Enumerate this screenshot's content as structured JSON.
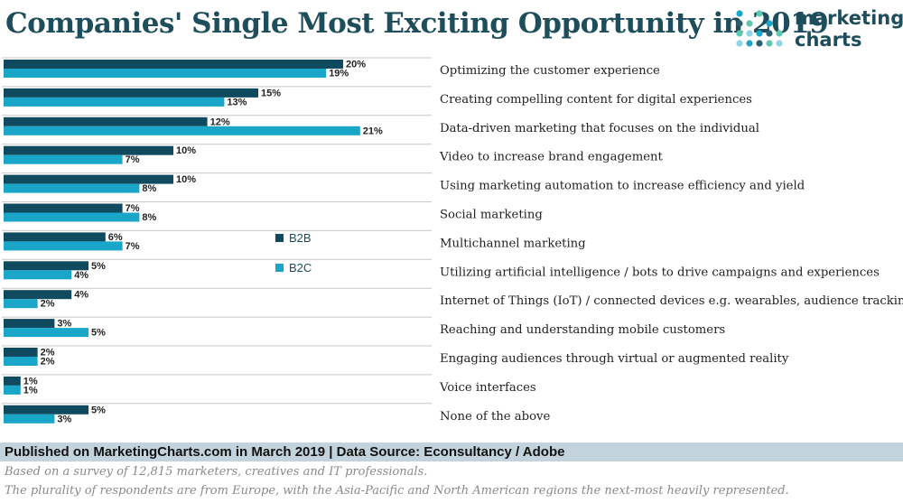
{
  "colors": {
    "b2b": "#0f4a5e",
    "b2c": "#1aa6c9",
    "title": "#1e4d5c",
    "footer_bg": "#c3d3dd",
    "logo_dots": [
      "#1aa6c9",
      "#2b5f6e",
      "#5cc8b0",
      "#8fd4e6"
    ]
  },
  "header": {
    "title": "Companies' Single Most Exciting Opportunity in 2019",
    "logo_line1": "marketing",
    "logo_line2": "charts"
  },
  "chart_data": {
    "type": "bar",
    "orientation": "horizontal",
    "title": "Companies' Single Most Exciting Opportunity in 2019",
    "value_suffix": "%",
    "xlim": [
      0,
      21
    ],
    "grid": false,
    "legend_position": "center-right",
    "categories": [
      "Optimizing the customer experience",
      "Creating compelling content for digital experiences",
      "Data-driven marketing that focuses on the individual",
      "Video to increase brand engagement",
      "Using marketing automation to increase efficiency and yield",
      "Social marketing",
      "Multichannel marketing",
      "Utilizing artificial intelligence / bots to drive campaigns and experiences",
      "Internet of Things (IoT) / connected devices e.g. wearables, audience tracking",
      "Reaching and understanding mobile customers",
      "Engaging audiences through virtual or augmented reality",
      "Voice interfaces",
      "None of the above"
    ],
    "series": [
      {
        "name": "B2B",
        "values": [
          20,
          15,
          12,
          10,
          10,
          7,
          6,
          5,
          4,
          3,
          2,
          1,
          5
        ]
      },
      {
        "name": "B2C",
        "values": [
          19,
          13,
          21,
          7,
          8,
          8,
          7,
          4,
          2,
          5,
          2,
          1,
          3
        ]
      }
    ]
  },
  "footer": {
    "source": "Published on MarketingCharts.com in March 2019 | Data Source: Econsultancy / Adobe",
    "note1": "Based on a survey of 12,815 marketers, creatives and IT professionals.",
    "note2": "The plurality of respondents are from Europe, with the Asia-Pacific and North American regions the next-most heavily represented."
  }
}
